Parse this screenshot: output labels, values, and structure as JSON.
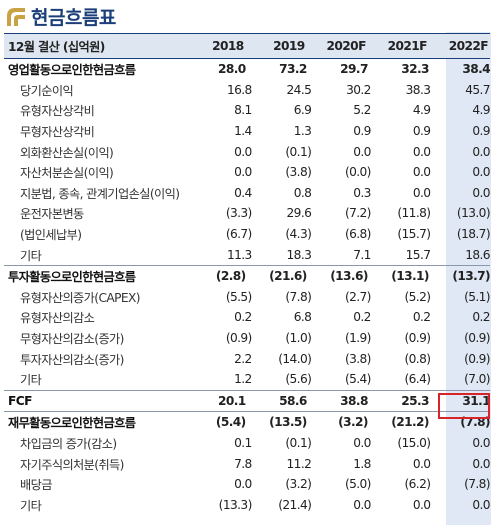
{
  "title": "현금흐름표",
  "table": {
    "header": {
      "label": "12월 결산 (십억원)",
      "years": [
        "2018",
        "2019",
        "2020F",
        "2021F",
        "2022F"
      ]
    },
    "rows": [
      {
        "label": "영업활동으로인한현금흐름",
        "type": "sect",
        "values": [
          "28.0",
          "73.2",
          "29.7",
          "32.3",
          "38.4"
        ]
      },
      {
        "label": "당기순이익",
        "type": "sub",
        "values": [
          "16.8",
          "24.5",
          "30.2",
          "38.3",
          "45.7"
        ]
      },
      {
        "label": "유형자산상각비",
        "type": "sub",
        "values": [
          "8.1",
          "6.9",
          "5.2",
          "4.9",
          "4.9"
        ]
      },
      {
        "label": "무형자산상각비",
        "type": "sub",
        "values": [
          "1.4",
          "1.3",
          "0.9",
          "0.9",
          "0.9"
        ]
      },
      {
        "label": "외화환산손실(이익)",
        "type": "sub",
        "values": [
          "0.0",
          "(0.1)",
          "0.0",
          "0.0",
          "0.0"
        ]
      },
      {
        "label": "자산처분손실(이익)",
        "type": "sub",
        "values": [
          "0.0",
          "(3.8)",
          "(0.0)",
          "0.0",
          "0.0"
        ]
      },
      {
        "label": "지분법, 종속, 관계기업손실(이익)",
        "type": "sub",
        "values": [
          "0.4",
          "0.8",
          "0.3",
          "0.0",
          "0.0"
        ]
      },
      {
        "label": "운전자본변동",
        "type": "sub",
        "values": [
          "(3.3)",
          "29.6",
          "(7.2)",
          "(11.8)",
          "(13.0)"
        ]
      },
      {
        "label": "(법인세납부)",
        "type": "sub",
        "values": [
          "(6.7)",
          "(4.3)",
          "(6.8)",
          "(15.7)",
          "(18.7)"
        ]
      },
      {
        "label": "기타",
        "type": "sub",
        "values": [
          "11.3",
          "18.3",
          "7.1",
          "15.7",
          "18.6"
        ]
      },
      {
        "label": "투자활동으로인한현금흐름",
        "type": "sect",
        "values": [
          "(2.8)",
          "(21.6)",
          "(13.6)",
          "(13.1)",
          "(13.7)"
        ]
      },
      {
        "label": "유형자산의증가(CAPEX)",
        "type": "sub",
        "values": [
          "(5.5)",
          "(7.8)",
          "(2.7)",
          "(5.2)",
          "(5.1)"
        ]
      },
      {
        "label": "유형자산의감소",
        "type": "sub",
        "values": [
          "0.2",
          "6.8",
          "0.2",
          "0.2",
          "0.2"
        ]
      },
      {
        "label": "무형자산의감소(증가)",
        "type": "sub",
        "values": [
          "(0.9)",
          "(1.0)",
          "(1.9)",
          "(0.9)",
          "(0.9)"
        ]
      },
      {
        "label": "투자자산의감소(증가)",
        "type": "sub",
        "values": [
          "2.2",
          "(14.0)",
          "(3.8)",
          "(0.8)",
          "(0.9)"
        ]
      },
      {
        "label": "기타",
        "type": "sub",
        "values": [
          "1.2",
          "(5.6)",
          "(5.4)",
          "(6.4)",
          "(7.0)"
        ]
      },
      {
        "label": "FCF",
        "type": "sect",
        "values": [
          "20.1",
          "58.6",
          "38.8",
          "25.3",
          "31.1"
        ]
      },
      {
        "label": "재무활동으로인한현금흐름",
        "type": "sect",
        "values": [
          "(5.4)",
          "(13.5)",
          "(3.2)",
          "(21.2)",
          "(7.8)"
        ]
      },
      {
        "label": "차입금의 증가(감소)",
        "type": "sub",
        "values": [
          "0.1",
          "(0.1)",
          "0.0",
          "(15.0)",
          "0.0"
        ]
      },
      {
        "label": "자기주식의처분(취득)",
        "type": "sub",
        "values": [
          "7.8",
          "11.2",
          "1.8",
          "0.0",
          "0.0"
        ]
      },
      {
        "label": "배당금",
        "type": "sub",
        "values": [
          "0.0",
          "(3.2)",
          "(5.0)",
          "(6.2)",
          "(7.8)"
        ]
      },
      {
        "label": "기타",
        "type": "sub",
        "values": [
          "(13.3)",
          "(21.4)",
          "0.0",
          "0.0",
          "0.0"
        ]
      }
    ]
  },
  "colors": {
    "title": "#1c3f7a",
    "highlight_box": "#d9232b",
    "column_highlight": "#dfe8f4"
  }
}
